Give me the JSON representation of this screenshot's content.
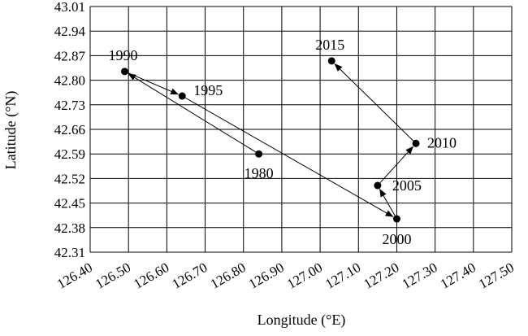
{
  "chart_data": {
    "type": "scatter",
    "title": "",
    "xlabel": "Longitude (°E)",
    "ylabel": "Latitude (°N)",
    "xlim": [
      126.4,
      127.5
    ],
    "ylim": [
      42.31,
      43.01
    ],
    "x_ticks": [
      "126.40",
      "126.50",
      "126.60",
      "126.70",
      "126.80",
      "126.90",
      "127.00",
      "127.10",
      "127.20",
      "127.30",
      "127.40",
      "127.50"
    ],
    "y_ticks": [
      "42.31",
      "42.38",
      "42.45",
      "42.52",
      "42.59",
      "42.66",
      "42.73",
      "42.80",
      "42.87",
      "42.94",
      "43.01"
    ],
    "grid": true,
    "points": [
      {
        "label": "1980",
        "x": 126.84,
        "y": 42.59
      },
      {
        "label": "1990",
        "x": 126.49,
        "y": 42.825
      },
      {
        "label": "1995",
        "x": 126.64,
        "y": 42.755
      },
      {
        "label": "2000",
        "x": 127.2,
        "y": 42.405
      },
      {
        "label": "2005",
        "x": 127.15,
        "y": 42.5
      },
      {
        "label": "2010",
        "x": 127.25,
        "y": 42.62
      },
      {
        "label": "2015",
        "x": 127.03,
        "y": 42.855
      }
    ],
    "path_order": [
      "1980",
      "1990",
      "1995",
      "2000",
      "2005",
      "2010",
      "2015"
    ],
    "colors": {
      "marker": "#000000",
      "line": "#000000",
      "grid": "#000000"
    }
  }
}
